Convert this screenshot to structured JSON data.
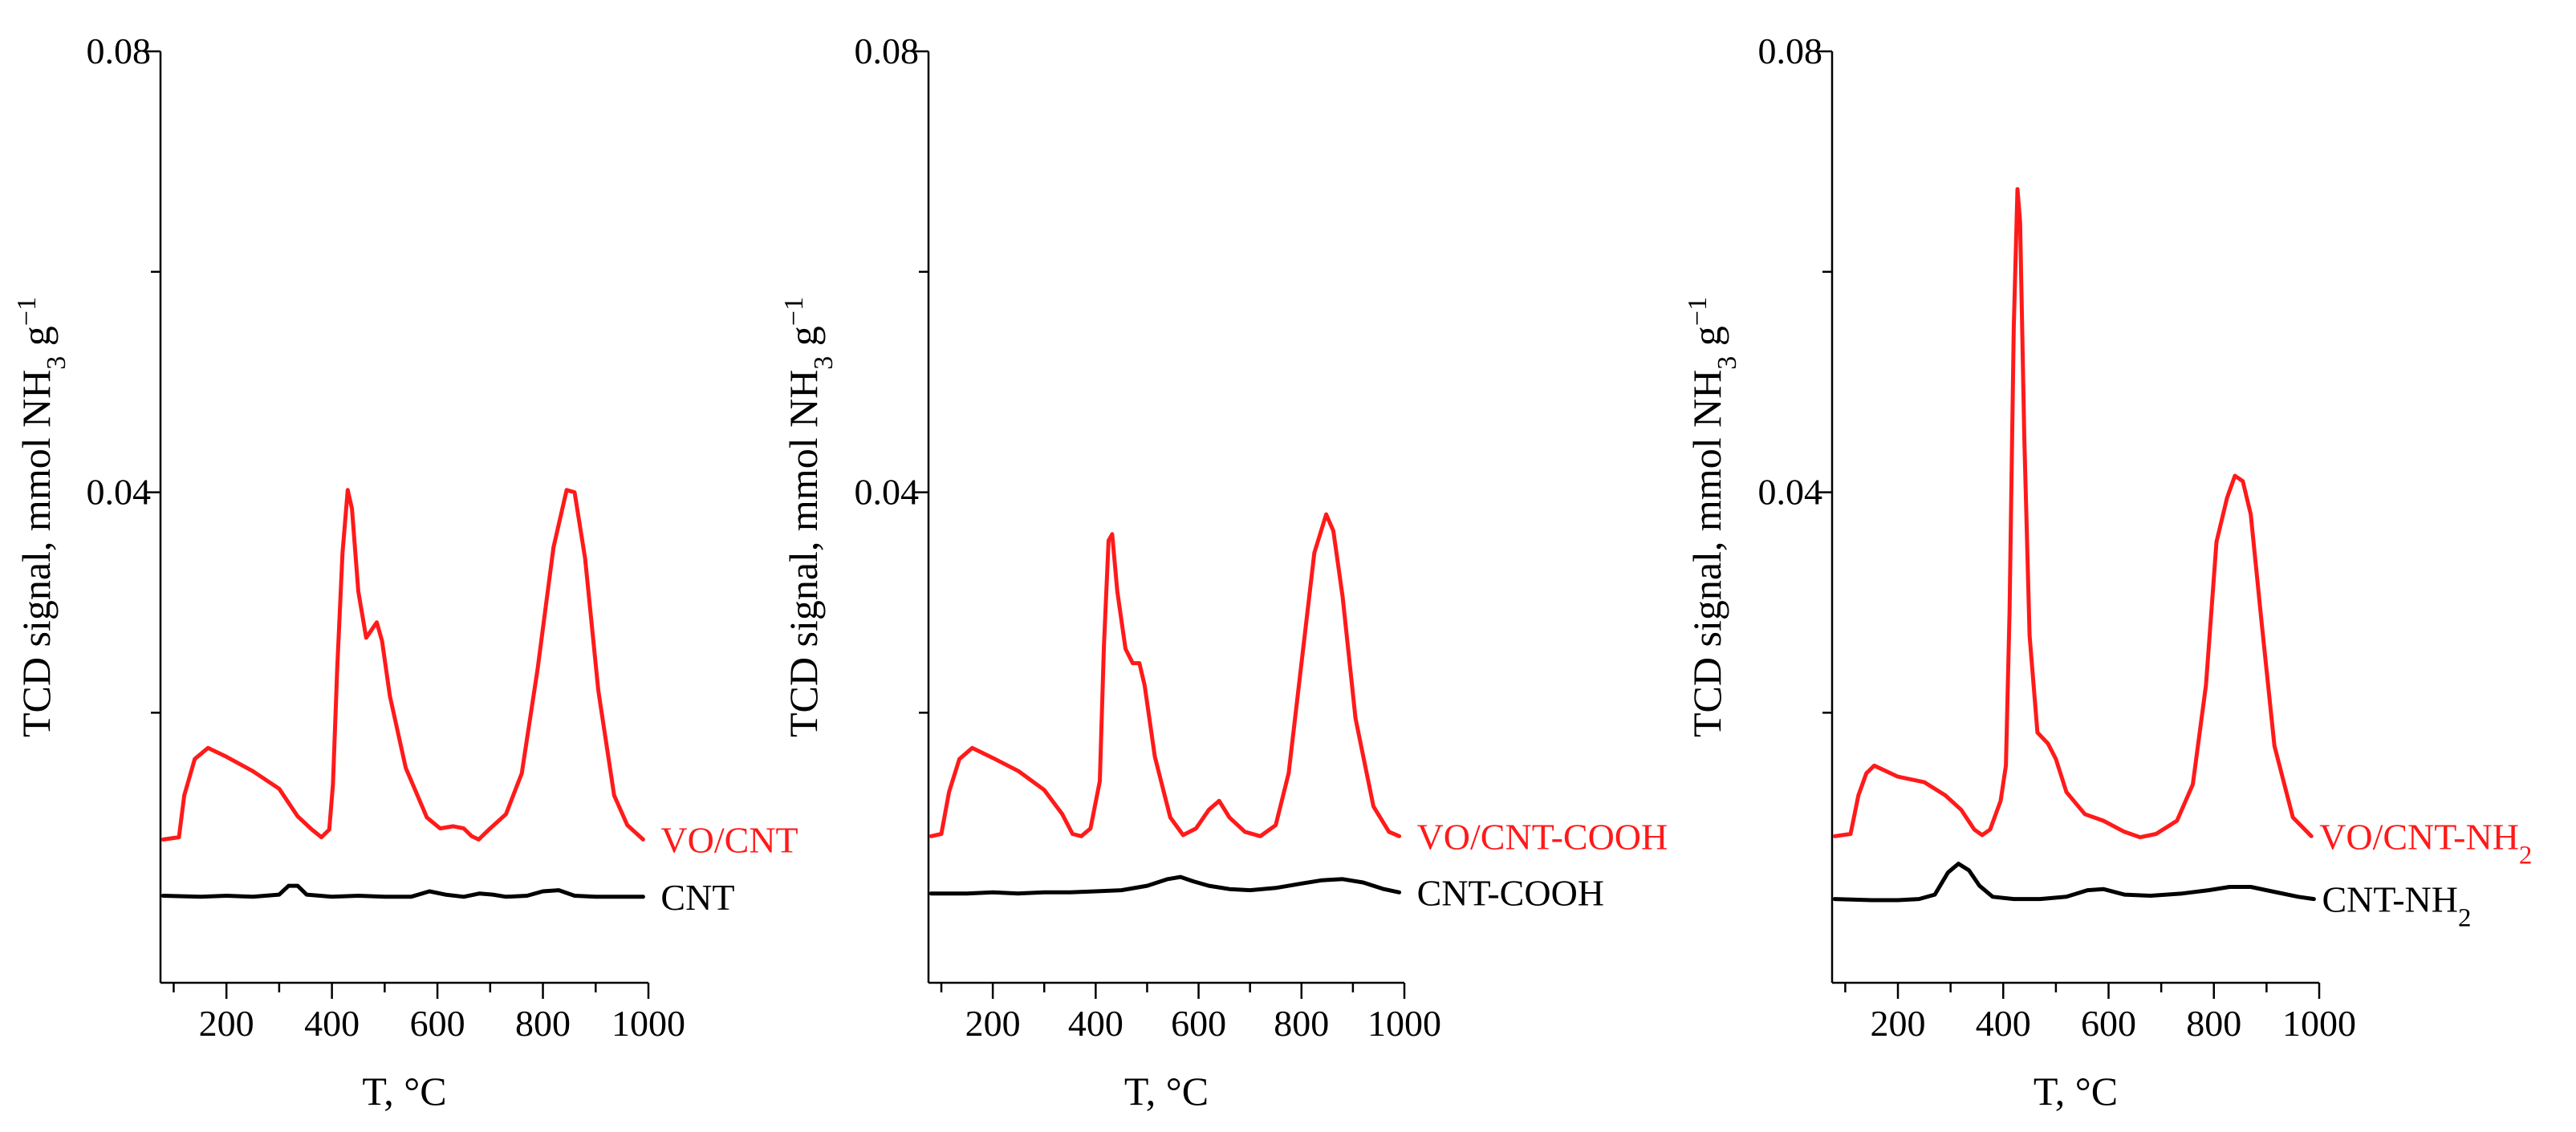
{
  "colors": {
    "vo_series": "#ff1a1a",
    "support_series": "#000000",
    "axis": "#000000"
  },
  "chart_data": [
    {
      "type": "line",
      "panel": "left",
      "xlabel": "T, °C",
      "ylabel": {
        "prefix": "TCD signal, mmol NH",
        "sub": "3",
        "mid": " g",
        "sup": "−1"
      },
      "xlim": [
        75,
        1000
      ],
      "ylim": [
        -0.0045,
        0.08
      ],
      "x_ticks": [
        200,
        400,
        600,
        800,
        1000
      ],
      "y_ticks": [
        0.04,
        0.08
      ],
      "y_tick_labels": [
        "0.04",
        "0.08"
      ],
      "series": [
        {
          "name": "VO/CNT",
          "label_main": "VO/CNT",
          "label_sub": "",
          "role": "vo",
          "points": [
            [
              80,
              0.0085
            ],
            [
              110,
              0.0087
            ],
            [
              120,
              0.0125
            ],
            [
              140,
              0.0158
            ],
            [
              165,
              0.0168
            ],
            [
              200,
              0.016
            ],
            [
              250,
              0.0147
            ],
            [
              300,
              0.0131
            ],
            [
              335,
              0.0106
            ],
            [
              362,
              0.0094
            ],
            [
              380,
              0.0087
            ],
            [
              395,
              0.0094
            ],
            [
              402,
              0.0135
            ],
            [
              410,
              0.024
            ],
            [
              420,
              0.0345
            ],
            [
              430,
              0.0402
            ],
            [
              438,
              0.0385
            ],
            [
              450,
              0.031
            ],
            [
              465,
              0.0268
            ],
            [
              485,
              0.0282
            ],
            [
              495,
              0.0265
            ],
            [
              510,
              0.0215
            ],
            [
              540,
              0.015
            ],
            [
              580,
              0.0105
            ],
            [
              605,
              0.0095
            ],
            [
              630,
              0.0097
            ],
            [
              650,
              0.0095
            ],
            [
              665,
              0.0088
            ],
            [
              678,
              0.0085
            ],
            [
              700,
              0.0095
            ],
            [
              730,
              0.0108
            ],
            [
              760,
              0.0145
            ],
            [
              790,
              0.024
            ],
            [
              820,
              0.035
            ],
            [
              845,
              0.0402
            ],
            [
              860,
              0.04
            ],
            [
              880,
              0.034
            ],
            [
              905,
              0.022
            ],
            [
              935,
              0.0125
            ],
            [
              960,
              0.0098
            ],
            [
              990,
              0.0085
            ]
          ]
        },
        {
          "name": "CNT",
          "label_main": "CNT",
          "label_sub": "",
          "role": "support",
          "points": [
            [
              80,
              0.0034
            ],
            [
              150,
              0.0033
            ],
            [
              200,
              0.0034
            ],
            [
              250,
              0.0033
            ],
            [
              300,
              0.0035
            ],
            [
              318,
              0.0043
            ],
            [
              335,
              0.0043
            ],
            [
              352,
              0.0035
            ],
            [
              400,
              0.0033
            ],
            [
              450,
              0.0034
            ],
            [
              500,
              0.0033
            ],
            [
              550,
              0.0033
            ],
            [
              585,
              0.0038
            ],
            [
              615,
              0.0035
            ],
            [
              650,
              0.0033
            ],
            [
              680,
              0.0036
            ],
            [
              705,
              0.0035
            ],
            [
              730,
              0.0033
            ],
            [
              770,
              0.0034
            ],
            [
              800,
              0.0038
            ],
            [
              830,
              0.0039
            ],
            [
              860,
              0.0034
            ],
            [
              900,
              0.0033
            ],
            [
              950,
              0.0033
            ],
            [
              990,
              0.0033
            ]
          ]
        }
      ]
    },
    {
      "type": "line",
      "panel": "middle",
      "xlabel": "T, °C",
      "ylabel": {
        "prefix": "TCD signal, mmol NH",
        "sub": "3",
        "mid": " g",
        "sup": "−1"
      },
      "xlim": [
        75,
        1000
      ],
      "ylim": [
        -0.0045,
        0.08
      ],
      "x_ticks": [
        200,
        400,
        600,
        800,
        1000
      ],
      "y_ticks": [
        0.04,
        0.08
      ],
      "y_tick_labels": [
        "0.04",
        "0.08"
      ],
      "series": [
        {
          "name": "VO/CNT-COOH",
          "label_main": "VO/CNT-COOH",
          "label_sub": "",
          "role": "vo",
          "points": [
            [
              80,
              0.0088
            ],
            [
              100,
              0.009
            ],
            [
              115,
              0.0128
            ],
            [
              135,
              0.0158
            ],
            [
              160,
              0.0168
            ],
            [
              200,
              0.0159
            ],
            [
              250,
              0.0147
            ],
            [
              300,
              0.013
            ],
            [
              335,
              0.0108
            ],
            [
              355,
              0.009
            ],
            [
              372,
              0.0088
            ],
            [
              390,
              0.0095
            ],
            [
              408,
              0.0138
            ],
            [
              416,
              0.026
            ],
            [
              425,
              0.0356
            ],
            [
              432,
              0.0362
            ],
            [
              442,
              0.031
            ],
            [
              458,
              0.0258
            ],
            [
              472,
              0.0245
            ],
            [
              485,
              0.0245
            ],
            [
              495,
              0.0225
            ],
            [
              515,
              0.016
            ],
            [
              545,
              0.0105
            ],
            [
              570,
              0.0089
            ],
            [
              595,
              0.0095
            ],
            [
              620,
              0.0112
            ],
            [
              640,
              0.012
            ],
            [
              660,
              0.0105
            ],
            [
              690,
              0.0092
            ],
            [
              720,
              0.0088
            ],
            [
              750,
              0.0098
            ],
            [
              775,
              0.0145
            ],
            [
              800,
              0.0245
            ],
            [
              825,
              0.0345
            ],
            [
              848,
              0.038
            ],
            [
              862,
              0.0365
            ],
            [
              880,
              0.0305
            ],
            [
              905,
              0.0195
            ],
            [
              940,
              0.0115
            ],
            [
              970,
              0.0092
            ],
            [
              990,
              0.0088
            ]
          ]
        },
        {
          "name": "CNT-COOH",
          "label_main": "CNT-COOH",
          "label_sub": "",
          "role": "support",
          "points": [
            [
              80,
              0.0036
            ],
            [
              150,
              0.0036
            ],
            [
              200,
              0.0037
            ],
            [
              250,
              0.0036
            ],
            [
              300,
              0.0037
            ],
            [
              350,
              0.0037
            ],
            [
              400,
              0.0038
            ],
            [
              450,
              0.0039
            ],
            [
              500,
              0.0043
            ],
            [
              540,
              0.0049
            ],
            [
              565,
              0.0051
            ],
            [
              590,
              0.0047
            ],
            [
              620,
              0.0043
            ],
            [
              660,
              0.004
            ],
            [
              700,
              0.0039
            ],
            [
              750,
              0.0041
            ],
            [
              800,
              0.0045
            ],
            [
              840,
              0.0048
            ],
            [
              880,
              0.0049
            ],
            [
              920,
              0.0046
            ],
            [
              960,
              0.004
            ],
            [
              990,
              0.0037
            ]
          ]
        }
      ]
    },
    {
      "type": "line",
      "panel": "right",
      "xlabel": "T, °C",
      "ylabel": {
        "prefix": "TCD signal, mmol NH",
        "sub": "3",
        "mid": " g",
        "sup": "−1"
      },
      "xlim": [
        75,
        1000
      ],
      "ylim": [
        -0.0045,
        0.08
      ],
      "x_ticks": [
        200,
        400,
        600,
        800,
        1000
      ],
      "y_ticks": [
        0.04,
        0.08
      ],
      "y_tick_labels": [
        "0.04",
        "0.08"
      ],
      "series": [
        {
          "name": "VO/CNT-NH2",
          "label_main": "VO/CNT-NH",
          "label_sub": "2",
          "role": "vo",
          "points": [
            [
              80,
              0.0088
            ],
            [
              110,
              0.009
            ],
            [
              125,
              0.0125
            ],
            [
              140,
              0.0145
            ],
            [
              155,
              0.0152
            ],
            [
              200,
              0.0142
            ],
            [
              250,
              0.0137
            ],
            [
              290,
              0.0125
            ],
            [
              320,
              0.0112
            ],
            [
              345,
              0.0094
            ],
            [
              360,
              0.0089
            ],
            [
              375,
              0.0094
            ],
            [
              395,
              0.012
            ],
            [
              405,
              0.0152
            ],
            [
              412,
              0.029
            ],
            [
              420,
              0.055
            ],
            [
              427,
              0.0675
            ],
            [
              432,
              0.0645
            ],
            [
              440,
              0.045
            ],
            [
              450,
              0.027
            ],
            [
              465,
              0.0182
            ],
            [
              485,
              0.0172
            ],
            [
              500,
              0.0158
            ],
            [
              520,
              0.0128
            ],
            [
              555,
              0.0108
            ],
            [
              590,
              0.0102
            ],
            [
              630,
              0.0092
            ],
            [
              660,
              0.0087
            ],
            [
              690,
              0.009
            ],
            [
              730,
              0.0102
            ],
            [
              760,
              0.0135
            ],
            [
              785,
              0.0225
            ],
            [
              805,
              0.0355
            ],
            [
              825,
              0.0395
            ],
            [
              840,
              0.0415
            ],
            [
              855,
              0.041
            ],
            [
              870,
              0.038
            ],
            [
              890,
              0.0285
            ],
            [
              915,
              0.017
            ],
            [
              950,
              0.0105
            ],
            [
              985,
              0.0088
            ]
          ]
        },
        {
          "name": "CNT-NH2",
          "label_main": "CNT-NH",
          "label_sub": "2",
          "role": "support",
          "points": [
            [
              80,
              0.0031
            ],
            [
              150,
              0.003
            ],
            [
              200,
              0.003
            ],
            [
              240,
              0.0031
            ],
            [
              270,
              0.0035
            ],
            [
              295,
              0.0055
            ],
            [
              315,
              0.0063
            ],
            [
              335,
              0.0057
            ],
            [
              355,
              0.0043
            ],
            [
              380,
              0.0033
            ],
            [
              420,
              0.0031
            ],
            [
              470,
              0.0031
            ],
            [
              520,
              0.0033
            ],
            [
              560,
              0.0039
            ],
            [
              590,
              0.004
            ],
            [
              630,
              0.0035
            ],
            [
              680,
              0.0034
            ],
            [
              740,
              0.0036
            ],
            [
              790,
              0.0039
            ],
            [
              830,
              0.0042
            ],
            [
              870,
              0.0042
            ],
            [
              910,
              0.0038
            ],
            [
              960,
              0.0033
            ],
            [
              990,
              0.0031
            ]
          ]
        }
      ]
    }
  ]
}
